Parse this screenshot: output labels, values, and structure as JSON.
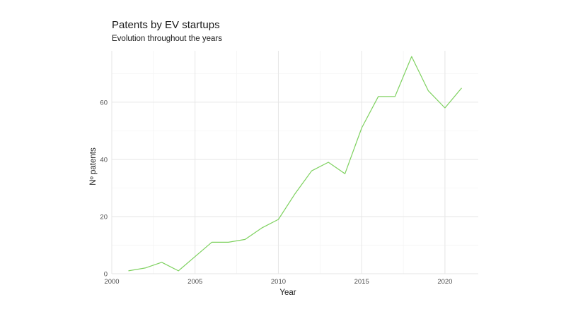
{
  "chart_data": {
    "type": "line",
    "title": "Patents by EV startups",
    "subtitle": "Evolution throughout the years",
    "xlabel": "Year",
    "ylabel": "Nº patents",
    "xlim": [
      2000,
      2022
    ],
    "ylim": [
      0,
      78
    ],
    "x_ticks": [
      2000,
      2005,
      2010,
      2015,
      2020
    ],
    "y_ticks": [
      0,
      20,
      40,
      60
    ],
    "grid": true,
    "legend": "none",
    "series": [
      {
        "color": "#7ed15f",
        "x": [
          2001,
          2002,
          2003,
          2004,
          2005,
          2006,
          2007,
          2008,
          2009,
          2010,
          2011,
          2012,
          2013,
          2014,
          2015,
          2016,
          2017,
          2018,
          2019,
          2020,
          2021
        ],
        "y": [
          1,
          2,
          4,
          1,
          6,
          11,
          11,
          12,
          16,
          19,
          28,
          36,
          39,
          35,
          51,
          62,
          62,
          76,
          64,
          58,
          65
        ]
      }
    ]
  }
}
